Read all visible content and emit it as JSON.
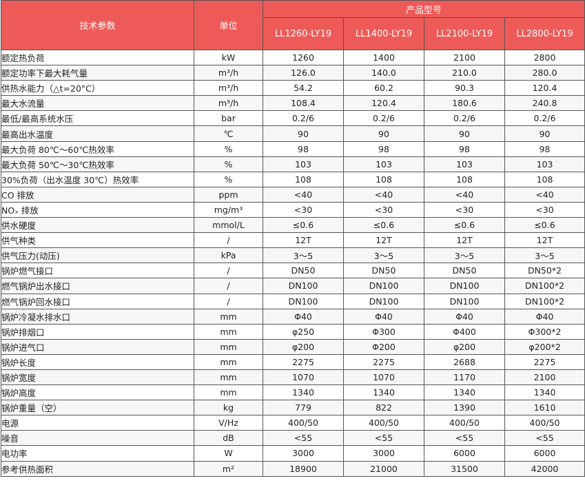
{
  "header": {
    "param_label": "技术参数",
    "unit_label": "单位",
    "group_label": "产品型号",
    "models": [
      "LL1260-LY19",
      "LL1400-LY19",
      "LL2100-LY19",
      "LL2800-LY19"
    ]
  },
  "rows": [
    {
      "name": "额定热负荷",
      "unit": "kW",
      "values": [
        "1260",
        "1400",
        "2100",
        "2800"
      ]
    },
    {
      "name": "额定功率下最大耗气量",
      "unit": "m³/h",
      "values": [
        "126.0",
        "140.0",
        "210.0",
        "280.0"
      ]
    },
    {
      "name": "供热水能力（△t=20°C）",
      "unit": "m³/h",
      "values": [
        "54.2",
        "60.2",
        "90.3",
        "120.4"
      ]
    },
    {
      "name": "最大水流量",
      "unit": "m³/h",
      "values": [
        "108.4",
        "120.4",
        "180.6",
        "240.8"
      ]
    },
    {
      "name": "最低/最高系统水压",
      "unit": "bar",
      "values": [
        "0.2/6",
        "0.2/6",
        "0.2/6",
        "0.2/6"
      ]
    },
    {
      "name": "最高出水温度",
      "unit": "℃",
      "values": [
        "90",
        "90",
        "90",
        "90"
      ]
    },
    {
      "name": "最大负荷 80℃～60℃热效率",
      "unit": "%",
      "values": [
        "98",
        "98",
        "98",
        "98"
      ]
    },
    {
      "name": "最大负荷 50℃～30℃热效率",
      "unit": "%",
      "values": [
        "103",
        "103",
        "103",
        "103"
      ]
    },
    {
      "name": "30%负荷（出水温度 30℃）热效率",
      "unit": "%",
      "values": [
        "108",
        "108",
        "108",
        "108"
      ]
    },
    {
      "name": "CO 排放",
      "unit": "ppm",
      "values": [
        "<40",
        "<40",
        "<40",
        "<40"
      ]
    },
    {
      "name": "NOₓ 排放",
      "unit": "mg/m³",
      "values": [
        "<30",
        "<30",
        "<30",
        "<30"
      ]
    },
    {
      "name": "供水硬度",
      "unit": "mmol/L",
      "values": [
        "≤0.6",
        "≤0.6",
        "≤0.6",
        "≤0.6"
      ]
    },
    {
      "name": "供气种类",
      "unit": "/",
      "values": [
        "12T",
        "12T",
        "12T",
        "12T"
      ]
    },
    {
      "name": "供气压力(动压)",
      "unit": "kPa",
      "values": [
        "3～5",
        "3～5",
        "3～5",
        "3～5"
      ]
    },
    {
      "name": "锅炉燃气接口",
      "unit": "/",
      "values": [
        "DN50",
        "DN50",
        "DN50",
        "DN50*2"
      ]
    },
    {
      "name": "燃气锅炉出水接口",
      "unit": "/",
      "values": [
        "DN100",
        "DN100",
        "DN100",
        "DN100*2"
      ]
    },
    {
      "name": "燃气锅炉回水接口",
      "unit": "/",
      "values": [
        "DN100",
        "DN100",
        "DN100",
        "DN100*2"
      ]
    },
    {
      "name": "锅炉冷凝水排水口",
      "unit": "mm",
      "values": [
        "Φ40",
        "Φ40",
        "Φ40",
        "Φ40"
      ]
    },
    {
      "name": "锅炉排烟口",
      "unit": "mm",
      "values": [
        "φ250",
        "Φ300",
        "Φ400",
        "Φ300*2"
      ]
    },
    {
      "name": "锅炉进气口",
      "unit": "mm",
      "values": [
        "φ200",
        "Φ200",
        "φ200",
        "φ200*2"
      ]
    },
    {
      "name": "锅炉长度",
      "unit": "mm",
      "values": [
        "2275",
        "2275",
        "2688",
        "2275"
      ]
    },
    {
      "name": "锅炉宽度",
      "unit": "mm",
      "values": [
        "1070",
        "1070",
        "1170",
        "2100"
      ]
    },
    {
      "name": "锅炉高度",
      "unit": "mm",
      "values": [
        "1340",
        "1340",
        "1340",
        "1340"
      ]
    },
    {
      "name": "锅炉重量（空）",
      "unit": "kg",
      "values": [
        "779",
        "822",
        "1390",
        "1610"
      ]
    },
    {
      "name": "电源",
      "unit": "V/Hz",
      "values": [
        "400/50",
        "400/50",
        "400/50",
        "400/50"
      ]
    },
    {
      "name": "噪音",
      "unit": "dB",
      "values": [
        "<55",
        "<55",
        "<55",
        "<55"
      ]
    },
    {
      "name": "电功率",
      "unit": "W",
      "values": [
        "3000",
        "3000",
        "6000",
        "6000"
      ]
    },
    {
      "name": "参考供热面积",
      "unit": "m²",
      "values": [
        "18900",
        "21000",
        "31500",
        "42000"
      ]
    }
  ]
}
